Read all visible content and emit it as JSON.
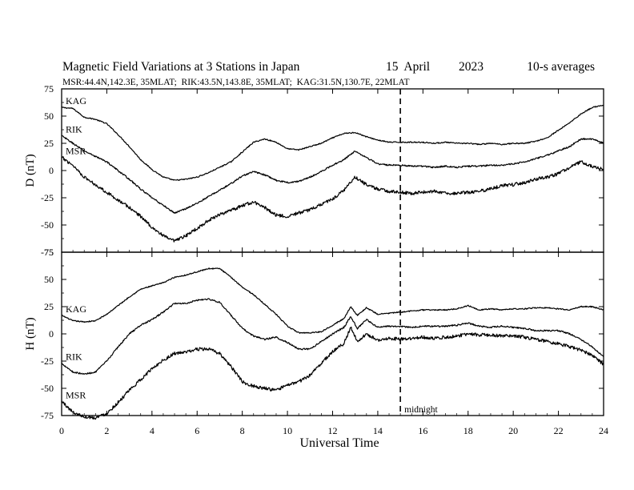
{
  "header": {
    "title": "Magnetic Field Variations at 3 Stations in Japan",
    "date": "15  April",
    "year": "2023",
    "averaging": "10-s averages",
    "stations_info": "MSR:44.4N,142.3E, 35MLAT;  RIK:43.5N,143.8E, 35MLAT;  KAG:31.5N,130.7E, 22MLAT"
  },
  "chart_data": {
    "type": "line",
    "xlabel": "Universal Time",
    "xlim": [
      0,
      24
    ],
    "xticks": [
      0,
      2,
      4,
      6,
      8,
      10,
      12,
      14,
      16,
      18,
      20,
      22,
      24
    ],
    "colors": {
      "line": "#000000",
      "background": "#ffffff"
    },
    "annotation": {
      "label": "midnight",
      "x": 15,
      "style": "dashed vertical line"
    },
    "panels": [
      {
        "ylabel": "D (nT)",
        "ylim": [
          -75,
          75
        ],
        "yticks": [
          75,
          50,
          25,
          0,
          -25,
          -50,
          -75
        ],
        "series": [
          {
            "name": "KAG",
            "x": [
              0,
              0.5,
              1,
              1.5,
              2,
              2.5,
              3,
              3.5,
              4,
              4.5,
              5,
              5.5,
              6,
              6.5,
              7,
              7.5,
              8,
              8.5,
              9,
              9.5,
              10,
              10.5,
              11,
              11.5,
              12,
              12.5,
              13,
              13.5,
              14,
              14.5,
              15,
              15.5,
              16,
              16.5,
              17,
              17.5,
              18,
              18.5,
              19,
              19.5,
              20,
              20.5,
              21,
              21.5,
              22,
              22.5,
              23,
              23.5,
              24
            ],
            "values": [
              58,
              57,
              49,
              47,
              43,
              33,
              22,
              10,
              1,
              -6,
              -9,
              -8,
              -6,
              -2,
              3,
              8,
              17,
              26,
              29,
              26,
              20,
              19,
              22,
              25,
              30,
              34,
              35,
              31,
              28,
              26,
              26,
              26,
              26,
              25,
              26,
              25,
              25,
              24,
              25,
              24,
              25,
              25,
              27,
              30,
              37,
              44,
              52,
              58,
              60
            ]
          },
          {
            "name": "RIK",
            "x": [
              0,
              0.5,
              1,
              1.5,
              2,
              2.5,
              3,
              3.5,
              4,
              4.5,
              5,
              5.5,
              6,
              6.5,
              7,
              7.5,
              8,
              8.5,
              9,
              9.5,
              10,
              10.5,
              11,
              11.5,
              12,
              12.5,
              13,
              13.5,
              14,
              14.5,
              15,
              15.5,
              16,
              16.5,
              17,
              17.5,
              18,
              18.5,
              19,
              19.5,
              20,
              20.5,
              21,
              21.5,
              22,
              22.5,
              23,
              23.5,
              24
            ],
            "values": [
              32,
              25,
              18,
              13,
              8,
              0,
              -8,
              -17,
              -25,
              -32,
              -39,
              -35,
              -30,
              -24,
              -18,
              -12,
              -5,
              -1,
              -4,
              -9,
              -11,
              -10,
              -6,
              -1,
              5,
              10,
              18,
              12,
              6,
              5,
              5,
              4,
              4,
              3,
              4,
              3,
              4,
              4,
              5,
              5,
              6,
              8,
              11,
              14,
              18,
              22,
              29,
              29,
              25
            ]
          },
          {
            "name": "MSR",
            "x": [
              0,
              0.5,
              1,
              1.5,
              2,
              2.5,
              3,
              3.5,
              4,
              4.5,
              5,
              5.5,
              6,
              6.5,
              7,
              7.5,
              8,
              8.5,
              9,
              9.5,
              10,
              10.5,
              11,
              11.5,
              12,
              12.5,
              13,
              13.5,
              14,
              14.5,
              15,
              15.5,
              16,
              16.5,
              17,
              17.5,
              18,
              18.5,
              19,
              19.5,
              20,
              20.5,
              21,
              21.5,
              22,
              22.5,
              23,
              23.5,
              24
            ],
            "values": [
              12,
              5,
              -6,
              -13,
              -20,
              -27,
              -34,
              -42,
              -52,
              -60,
              -65,
              -60,
              -53,
              -46,
              -40,
              -37,
              -32,
              -29,
              -34,
              -41,
              -42,
              -39,
              -36,
              -31,
              -26,
              -18,
              -6,
              -13,
              -17,
              -19,
              -20,
              -21,
              -20,
              -19,
              -21,
              -21,
              -20,
              -19,
              -17,
              -14,
              -13,
              -11,
              -8,
              -6,
              -3,
              3,
              8,
              4,
              1
            ]
          }
        ]
      },
      {
        "ylabel": "H (nT)",
        "ylim": [
          -75,
          75
        ],
        "yticks": [
          75,
          50,
          25,
          0,
          -25,
          -50,
          -75
        ],
        "series": [
          {
            "name": "KAG",
            "x": [
              0,
              0.5,
              1,
              1.5,
              2,
              2.5,
              3,
              3.5,
              4,
              4.5,
              5,
              5.5,
              6,
              6.5,
              7,
              7.5,
              8,
              8.5,
              9,
              9.5,
              10,
              10.5,
              11,
              11.5,
              12,
              12.5,
              12.8,
              13.1,
              13.5,
              14,
              14.5,
              15,
              15.5,
              16,
              16.5,
              17,
              17.5,
              18,
              18.5,
              19,
              19.5,
              20,
              20.5,
              21,
              21.5,
              22,
              22.5,
              23,
              23.5,
              24
            ],
            "values": [
              17,
              12,
              11,
              12,
              18,
              26,
              34,
              41,
              44,
              47,
              52,
              54,
              57,
              60,
              60,
              52,
              43,
              36,
              27,
              18,
              7,
              1,
              1,
              2,
              8,
              14,
              25,
              17,
              24,
              18,
              19,
              20,
              21,
              22,
              22,
              22,
              23,
              26,
              22,
              23,
              22,
              23,
              23,
              24,
              24,
              23,
              22,
              25,
              25,
              22
            ]
          },
          {
            "name": "RIK",
            "x": [
              0,
              0.5,
              1,
              1.5,
              2,
              2.5,
              3,
              3.5,
              4,
              4.5,
              5,
              5.5,
              6,
              6.5,
              7,
              7.5,
              8,
              8.5,
              9,
              9.5,
              10,
              10.5,
              11,
              11.5,
              12,
              12.5,
              12.8,
              13.1,
              13.5,
              14,
              14.5,
              15,
              15.5,
              16,
              16.5,
              17,
              17.5,
              18,
              18.5,
              19,
              19.5,
              20,
              20.5,
              21,
              21.5,
              22,
              22.5,
              23,
              23.5,
              24
            ],
            "values": [
              -27,
              -35,
              -37,
              -35,
              -25,
              -12,
              0,
              8,
              13,
              20,
              28,
              28,
              31,
              32,
              29,
              17,
              5,
              -2,
              -5,
              -3,
              -8,
              -14,
              -14,
              -7,
              0,
              6,
              16,
              5,
              13,
              6,
              7,
              7,
              6,
              7,
              7,
              7,
              8,
              10,
              7,
              6,
              7,
              6,
              5,
              3,
              3,
              3,
              0,
              -5,
              -12,
              -21
            ]
          },
          {
            "name": "MSR",
            "x": [
              0,
              0.5,
              1,
              1.5,
              2,
              2.5,
              3,
              3.5,
              4,
              4.5,
              5,
              5.5,
              6,
              6.5,
              7,
              7.5,
              8,
              8.5,
              9,
              9.5,
              10,
              10.5,
              11,
              11.5,
              12,
              12.5,
              12.8,
              13.1,
              13.5,
              14,
              14.5,
              15,
              15.5,
              16,
              16.5,
              17,
              17.5,
              18,
              18.5,
              19,
              19.5,
              20,
              20.5,
              21,
              21.5,
              22,
              22.5,
              23,
              23.5,
              24
            ],
            "values": [
              -62,
              -72,
              -76,
              -77,
              -73,
              -63,
              -52,
              -42,
              -32,
              -24,
              -18,
              -17,
              -14,
              -14,
              -18,
              -30,
              -44,
              -48,
              -50,
              -52,
              -47,
              -44,
              -38,
              -27,
              -16,
              -9,
              6,
              -7,
              0,
              -6,
              -4,
              -5,
              -4,
              -3,
              -4,
              -3,
              -2,
              0,
              -1,
              -1,
              -2,
              -2,
              -3,
              -5,
              -7,
              -9,
              -12,
              -15,
              -20,
              -28
            ]
          }
        ]
      }
    ]
  }
}
